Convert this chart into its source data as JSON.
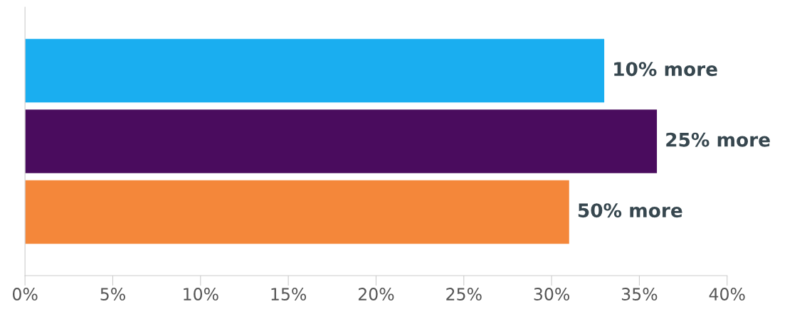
{
  "chart_data": {
    "type": "bar",
    "orientation": "horizontal",
    "categories": [
      null,
      null,
      null
    ],
    "values": [
      33,
      36,
      31
    ],
    "colors": [
      "#1aaef0",
      "#4a0c5e",
      "#f4873a"
    ],
    "annotations": [
      {
        "text": "10% more",
        "x": 33
      },
      {
        "text": "25% more",
        "x": 36
      },
      {
        "text": "50% more",
        "x": 31
      }
    ],
    "xlim": [
      0,
      40
    ],
    "xticks": [
      {
        "value": 0,
        "label": "0%"
      },
      {
        "value": 5,
        "label": "5%"
      },
      {
        "value": 10,
        "label": "10%"
      },
      {
        "value": 15,
        "label": "15%"
      },
      {
        "value": 20,
        "label": "20%"
      },
      {
        "value": 25,
        "label": "25%"
      },
      {
        "value": 30,
        "label": "30%"
      },
      {
        "value": 35,
        "label": "35%"
      },
      {
        "value": 40,
        "label": "40%"
      }
    ],
    "grid": false,
    "legend": false
  }
}
